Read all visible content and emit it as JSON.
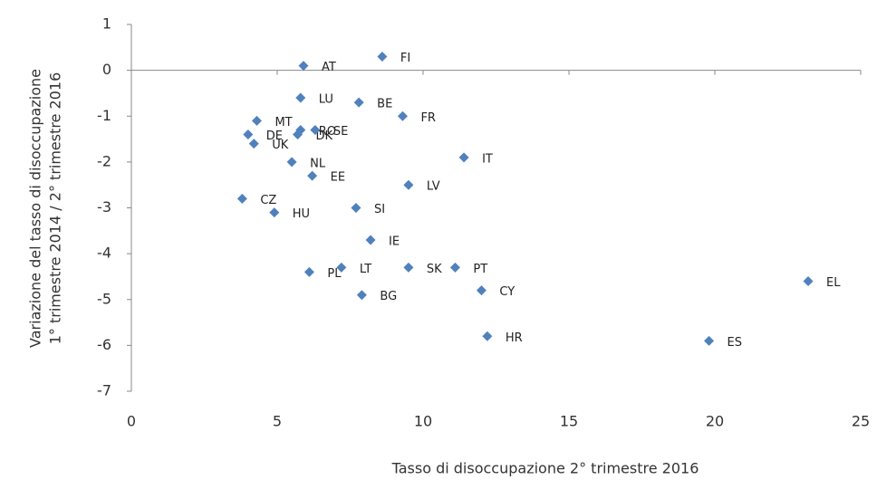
{
  "chart_data": {
    "type": "scatter",
    "x_label": "Tasso di disoccupazione 2° trimestre 2016",
    "y_label": [
      "Variazione del tasso di disoccupazione",
      "1° trimestre 2014 / 2° trimestre 2016"
    ],
    "labels": [
      "AT",
      "FI",
      "LU",
      "BE",
      "FR",
      "MT",
      "DE",
      "UK",
      "DK",
      "RO",
      "SE",
      "NL",
      "IT",
      "EE",
      "LV",
      "CZ",
      "HU",
      "SI",
      "IE",
      "PL",
      "LT",
      "SK",
      "PT",
      "CY",
      "BG",
      "EL",
      "HR",
      "ES"
    ],
    "x": [
      5.9,
      8.6,
      5.8,
      7.8,
      9.3,
      4.3,
      4.0,
      4.2,
      5.7,
      5.8,
      6.3,
      5.5,
      11.4,
      6.2,
      9.5,
      3.8,
      4.9,
      7.7,
      8.2,
      6.1,
      7.2,
      9.5,
      11.1,
      12.0,
      7.9,
      23.2,
      12.2,
      19.8
    ],
    "values": [
      0.1,
      0.3,
      -0.6,
      -0.7,
      -1.0,
      -1.1,
      -1.4,
      -1.6,
      -1.4,
      -1.3,
      -1.3,
      -2.0,
      -1.9,
      -2.3,
      -2.5,
      -2.8,
      -3.1,
      -3.0,
      -3.7,
      -4.4,
      -4.3,
      -4.3,
      -4.3,
      -4.8,
      -4.9,
      -4.6,
      -5.8,
      -5.9
    ],
    "color": "#4f81bd",
    "xlim": [
      0,
      25
    ],
    "xticks": [
      0,
      5,
      10,
      15,
      20,
      25
    ],
    "ylim": [
      -7,
      1
    ],
    "yticks": [
      -7,
      -6,
      -5,
      -4,
      -3,
      -2,
      -1,
      0,
      1
    ]
  }
}
